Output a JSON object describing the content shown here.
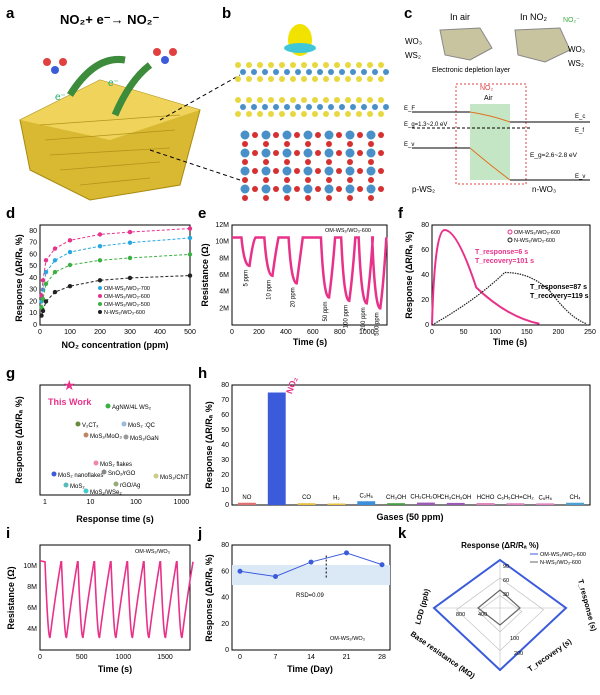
{
  "panel_labels": [
    "a",
    "b",
    "c",
    "d",
    "e",
    "f",
    "g",
    "h",
    "i",
    "j",
    "k"
  ],
  "panel_a": {
    "equation": "NO₂+ e⁻→ NO₂⁻",
    "electron": "e⁻"
  },
  "panel_c": {
    "in_air": "In air",
    "in_no2": "In NO₂",
    "no2_ion": "NO₂⁻",
    "wo3": "WO₃",
    "ws2": "WS₂",
    "depletion": "Electronic depletion layer",
    "no2_label": "NO₂",
    "air_label": "Air",
    "ef": "E_F",
    "ec_left": "E_c",
    "ef_left": "E_f",
    "ev_left": "E_v",
    "eg_ws2": "E_g=1.3~2.0 eV",
    "eg_wo3": "E_g=2.6~2.8 eV",
    "ec_right": "E_c",
    "ef_right": "E_f",
    "ev_right": "E_v",
    "p_ws2": "p-WS₂",
    "n_wo3": "n-WO₃"
  },
  "panel_d": {
    "xlabel": "NO₂ concentration (ppm)",
    "ylabel": "Response (ΔR/Rₐ %)",
    "xticks": [
      0,
      100,
      200,
      300,
      400,
      500
    ],
    "yticks": [
      0,
      10,
      20,
      30,
      40,
      50,
      60,
      70,
      80
    ],
    "legend": [
      "OM-WS₂/WO₃-700",
      "OM-WS₂/WO₃-600",
      "OM-WS₂/WO₃-500",
      "N-WS₂/WO₃-600"
    ]
  },
  "panel_e": {
    "xlabel": "Time (s)",
    "ylabel": "Resistance (Ω)",
    "legend": "OM-WS₂/WO₃-600",
    "yticks": [
      "2M",
      "4M",
      "6M",
      "8M",
      "10M",
      "12M"
    ],
    "xticks": [
      0,
      200,
      400,
      600,
      800,
      1000
    ],
    "conc_labels": [
      "5 ppm",
      "10 ppm",
      "20 ppm",
      "50 ppm",
      "100 ppm",
      "200 ppm",
      "500 ppm"
    ]
  },
  "panel_f": {
    "xlabel": "Time (s)",
    "ylabel": "Response (ΔR/Rₐ %)",
    "xticks": [
      0,
      50,
      100,
      150,
      200,
      250
    ],
    "yticks": [
      0,
      20,
      40,
      60,
      80
    ],
    "legend": [
      "OM-WS₂/WO₃-600",
      "N-WS₂/WO₃-600"
    ],
    "t1a": "T_response=6 s",
    "t1b": "T_recovery=101 s",
    "t2a": "T_response=87 s",
    "t2b": "T_recovery=119 s"
  },
  "panel_g": {
    "xlabel": "Response time (s)",
    "ylabel": "Response (ΔR/Rₐ %)",
    "xticks": [
      "1",
      "10",
      "100",
      "1000"
    ],
    "this_work": "This Work",
    "points": [
      "AgNW/4L WS₂",
      "V₂CTₓ",
      "MoS₂ :QC",
      "MoS₂/MoO₃",
      "MoS₂/GaN",
      "MoS₂ nanoflakes",
      "MoS₂ flakes",
      "SnO₂/rGO",
      "MoS₂/CNT",
      "MoS₂",
      "rGO/Ag",
      "MoS₂/WSe₂"
    ]
  },
  "panel_h": {
    "xlabel": "Gases (50 ppm)",
    "ylabel": "Response (ΔR/Rₐ %)",
    "gases": [
      "NO",
      "NO₂",
      "CO",
      "H₂",
      "C₂H₆",
      "CH₃OH",
      "CH₃CH₂OH",
      "CH₃CH₂OH",
      "HCHO",
      "C₆H₅CH=CH₂",
      "C₆H₆",
      "CH₄"
    ],
    "gas_display": [
      "NO",
      "NO₂",
      "CO",
      "H₂",
      "C₂H₆",
      "CH₃OH",
      "CH₃CH₂OH",
      "CH₃CH₃OH",
      "HCHO",
      "C₆H₅CH=CH₂",
      "C₆H₆",
      "CH₄"
    ]
  },
  "panel_i": {
    "xlabel": "Time (s)",
    "ylabel": "Resistance (Ω)",
    "legend": "OM-WS₂/WO₃",
    "yticks": [
      "4M",
      "6M",
      "8M",
      "10M"
    ],
    "xticks": [
      0,
      500,
      1000,
      1500
    ]
  },
  "panel_j": {
    "xlabel": "Time (Day)",
    "ylabel": "Response (ΔR/Rₐ %)",
    "legend": "OM-WS₂/WO₃",
    "xticks": [
      0,
      7,
      14,
      21,
      28
    ],
    "yticks": [
      0,
      20,
      40,
      60,
      80
    ],
    "rsd": "RSD=0.09"
  },
  "panel_k": {
    "title": "Response (ΔR/Rₐ %)",
    "legend": [
      "OM-WS₂/WO₃-600",
      "N-WS₂/WO₃-600"
    ],
    "axes": [
      "LOD (ppb)",
      "T_response (s)",
      "T_recovery (s)",
      "Base resistance (MΩ)"
    ],
    "tick_labels": [
      "30",
      "60",
      "90",
      "400",
      "800",
      "100",
      "200"
    ]
  },
  "chart_data": [
    {
      "type": "line",
      "panel": "d",
      "xlabel": "NO₂ concentration (ppm)",
      "ylabel": "Response (ΔR/Rₐ %)",
      "xlim": [
        0,
        500
      ],
      "ylim": [
        0,
        85
      ],
      "x": [
        5,
        10,
        20,
        50,
        100,
        200,
        300,
        500
      ],
      "series": [
        {
          "name": "OM-WS₂/WO₃-700",
          "values": [
            20,
            30,
            45,
            55,
            62,
            67,
            70,
            74
          ]
        },
        {
          "name": "OM-WS₂/WO₃-600",
          "values": [
            25,
            38,
            55,
            65,
            72,
            77,
            79,
            82
          ]
        },
        {
          "name": "OM-WS₂/WO₃-500",
          "values": [
            15,
            22,
            35,
            45,
            51,
            55,
            57,
            60
          ]
        },
        {
          "name": "N-WS₂/WO₃-600",
          "values": [
            8,
            12,
            20,
            28,
            33,
            38,
            40,
            42
          ]
        }
      ]
    },
    {
      "type": "line",
      "panel": "e",
      "xlabel": "Time (s)",
      "ylabel": "Resistance (Ω)",
      "xlim": [
        0,
        1150
      ],
      "ylim": [
        0,
        12
      ],
      "series": [
        {
          "name": "OM-WS₂/WO₃-600",
          "minima": [
            7.1,
            5.9,
            5.0,
            3.3,
            2.9,
            2.6,
            2.0
          ],
          "times": [
            130,
            300,
            480,
            720,
            870,
            1000,
            1100
          ]
        }
      ]
    },
    {
      "type": "line",
      "panel": "f",
      "xlabel": "Time (s)",
      "ylabel": "Response (ΔR/Rₐ %)",
      "xlim": [
        0,
        250
      ],
      "ylim": [
        0,
        80
      ],
      "series": [
        {
          "name": "OM-WS₂/WO₃-600",
          "peak": 76,
          "peak_time": 20,
          "end_time": 170
        },
        {
          "name": "N-WS₂/WO₃-600",
          "peak": 42,
          "peak_time": 115,
          "end_time": 245
        }
      ]
    },
    {
      "type": "bar",
      "panel": "h",
      "categories": [
        "NO",
        "NO₂",
        "CO",
        "H₂",
        "C₂H₆",
        "CH₃OH",
        "CH₃CH₂OH",
        "CH₃CH₃OH",
        "HCHO",
        "C₆H₅CH=CH₂",
        "C₆H₆",
        "CH₄"
      ],
      "values": [
        1.5,
        75,
        1.2,
        1.0,
        2.5,
        1.2,
        1.6,
        1.4,
        1.3,
        1.2,
        1.1,
        1.5
      ],
      "ylim": [
        0,
        80
      ],
      "xlabel": "Gases (50 ppm)",
      "ylabel": "Response (ΔR/Rₐ %)"
    },
    {
      "type": "line",
      "panel": "j",
      "x": [
        0,
        7,
        14,
        21,
        28
      ],
      "values": [
        60,
        56,
        67,
        74,
        65
      ],
      "ylim": [
        0,
        80
      ],
      "xlabel": "Time (Day)",
      "ylabel": "Response (ΔR/Rₐ %)"
    }
  ],
  "colors": {
    "pink": "#e8328a",
    "blue": "#3b5bdb",
    "cyan": "#29a8e0",
    "green": "#3cb043",
    "black": "#222222",
    "gold": "#d4b020"
  }
}
